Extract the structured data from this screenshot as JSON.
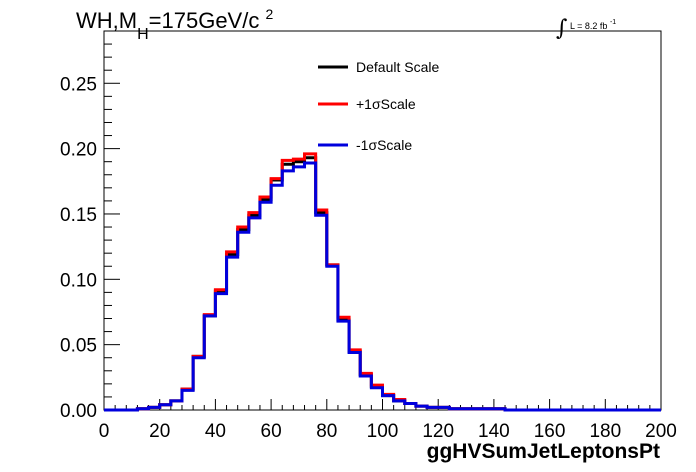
{
  "title": {
    "prefix": "WH,M",
    "sub": "H",
    "mid": "=175GeV/c",
    "sup": "2"
  },
  "lumi": {
    "symbol": "∫",
    "text": "L = 8.2 fb",
    "sup": "-1"
  },
  "chart_data": {
    "type": "line",
    "xlabel": "ggHVSumJetLeptonsPt",
    "ylabel": "",
    "xlim": [
      0,
      200
    ],
    "ylim": [
      0,
      0.29
    ],
    "xticks": [
      0,
      20,
      40,
      60,
      80,
      100,
      120,
      140,
      160,
      180,
      200
    ],
    "xtick_labels": [
      "0",
      "20",
      "40",
      "60",
      "80",
      "100",
      "120",
      "140",
      "160",
      "180",
      "200"
    ],
    "yticks": [
      0,
      0.05,
      0.1,
      0.15,
      0.2,
      0.25
    ],
    "ytick_labels": [
      "0.00",
      "0.05",
      "0.10",
      "0.15",
      "0.20",
      "0.25"
    ],
    "bin_edges": [
      0,
      4,
      8,
      12,
      16,
      20,
      24,
      28,
      32,
      36,
      40,
      44,
      48,
      52,
      56,
      60,
      64,
      68,
      72,
      76,
      80,
      84,
      88,
      92,
      96,
      100,
      104,
      108,
      112,
      116,
      120,
      124,
      128,
      132,
      136,
      140,
      144,
      148,
      152,
      156,
      160,
      164,
      168,
      172,
      176,
      180,
      184,
      188,
      192,
      196,
      200
    ],
    "legend_position": "top-center",
    "series": [
      {
        "name": "Default Scale",
        "color": "#000000",
        "values": [
          0,
          0,
          0,
          0.001,
          0.002,
          0.004,
          0.007,
          0.016,
          0.041,
          0.072,
          0.091,
          0.119,
          0.138,
          0.149,
          0.161,
          0.176,
          0.188,
          0.19,
          0.193,
          0.151,
          0.111,
          0.069,
          0.045,
          0.027,
          0.018,
          0.011,
          0.007,
          0.005,
          0.003,
          0.002,
          0.002,
          0.001,
          0.001,
          0.001,
          0.001,
          0.001,
          0,
          0,
          0,
          0,
          0,
          0,
          0,
          0,
          0,
          0,
          0,
          0,
          0,
          0
        ]
      },
      {
        "name": "+1σScale",
        "color": "#ff0000",
        "values": [
          0,
          0,
          0,
          0.001,
          0.002,
          0.004,
          0.007,
          0.016,
          0.041,
          0.073,
          0.092,
          0.121,
          0.14,
          0.151,
          0.163,
          0.177,
          0.191,
          0.192,
          0.196,
          0.153,
          0.111,
          0.071,
          0.046,
          0.028,
          0.019,
          0.012,
          0.008,
          0.005,
          0.003,
          0.002,
          0.002,
          0.001,
          0.001,
          0.001,
          0.001,
          0.001,
          0,
          0,
          0,
          0,
          0,
          0,
          0,
          0,
          0,
          0,
          0,
          0,
          0,
          0
        ]
      },
      {
        "name": "-1σScale",
        "color": "#0000dd",
        "values": [
          0,
          0,
          0,
          0.001,
          0.002,
          0.004,
          0.007,
          0.015,
          0.04,
          0.072,
          0.089,
          0.117,
          0.136,
          0.147,
          0.159,
          0.172,
          0.183,
          0.186,
          0.189,
          0.149,
          0.11,
          0.068,
          0.044,
          0.026,
          0.017,
          0.011,
          0.007,
          0.005,
          0.003,
          0.002,
          0.002,
          0.001,
          0.001,
          0.001,
          0.001,
          0.001,
          0,
          0,
          0,
          0,
          0,
          0,
          0,
          0,
          0,
          0,
          0,
          0,
          0,
          0
        ]
      }
    ]
  }
}
